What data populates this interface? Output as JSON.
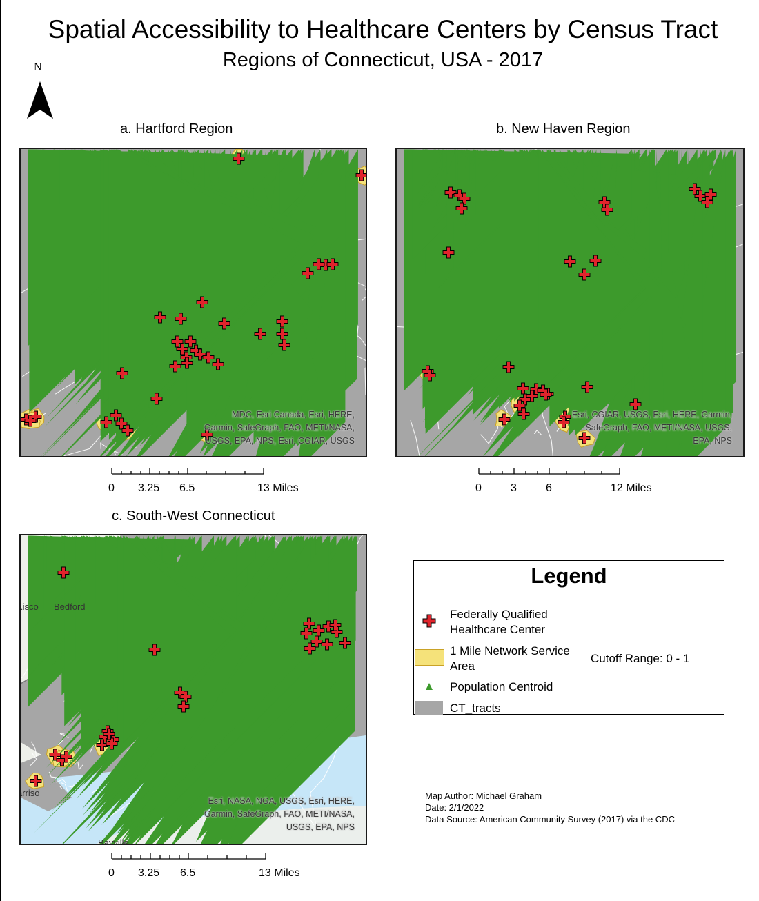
{
  "title": "Spatial Accessibility to Healthcare Centers by Census Tract",
  "subtitle": "Regions of Connecticut, USA - 2017",
  "north_arrow": {
    "label": "N",
    "icon": "north-arrow-icon"
  },
  "colors": {
    "tract_fill": "#a6a6a6",
    "tract_border": "#ffffff",
    "service_area": "#f5e27a",
    "service_area_outline": "#c9a227",
    "healthcare_cross": "#e0242c",
    "centroid": "#3d9a2c",
    "water": "#c6e6f8",
    "basemap_land": "#eef0ea"
  },
  "panels": [
    {
      "id": "a",
      "title": "a. Hartford Region",
      "attribution": [
        "MDC, Esri Canada, Esri, HERE,",
        "Garmin, SafeGraph, FAO, METI/NASA,",
        "USGS, EPA, NPS, Esri, CGIAR, USGS"
      ],
      "scale": {
        "ticks": [
          "0",
          "3.25",
          "6.5",
          "13 Miles"
        ]
      }
    },
    {
      "id": "b",
      "title": "b. New Haven Region",
      "attribution": [
        "Esri, CGIAR, USGS, Esri, HERE, Garmin,",
        "SafeGraph, FAO, METI/NASA, USGS,",
        "EPA, NPS"
      ],
      "scale": {
        "ticks": [
          "0",
          "3",
          "6",
          "12 Miles"
        ]
      }
    },
    {
      "id": "c",
      "title": "c. South-West Connecticut",
      "attribution": [
        "Esri, NASA, NGA, USGS, Esri, HERE,",
        "Garmin, SafeGraph, FAO, METI/NASA,",
        "USGS, EPA, NPS"
      ],
      "place_labels": [
        "Kisco",
        "Bedford",
        "Bayville",
        "arriso"
      ],
      "scale": {
        "ticks": [
          "0",
          "3.25",
          "6.5",
          "13 Miles"
        ]
      }
    }
  ],
  "legend": {
    "title": "Legend",
    "items": [
      {
        "label": "Federally Qualified Healthcare Center",
        "line1": "Federally Qualified",
        "line2": "Healthcare Center",
        "icon": "red-cross-icon"
      },
      {
        "label": "1 Mile Network Service Area",
        "line1": "1 Mile Network Service",
        "line2": "Area",
        "icon": "yellow-polygon-icon"
      },
      {
        "label": "Population Centroid",
        "line1": "Population Centroid",
        "line2": "",
        "icon": "green-triangle-icon"
      },
      {
        "label": "CT_tracts",
        "line1": "CT_tracts",
        "line2": "",
        "icon": "gray-polygon-icon"
      }
    ],
    "cutoff": "Cutoff Range: 0 - 1"
  },
  "credits": {
    "author": "Map Author: Michael Graham",
    "date": "Date: 2/1/2022",
    "source": "Data Source: American Community Survey (2017) via the CDC"
  }
}
